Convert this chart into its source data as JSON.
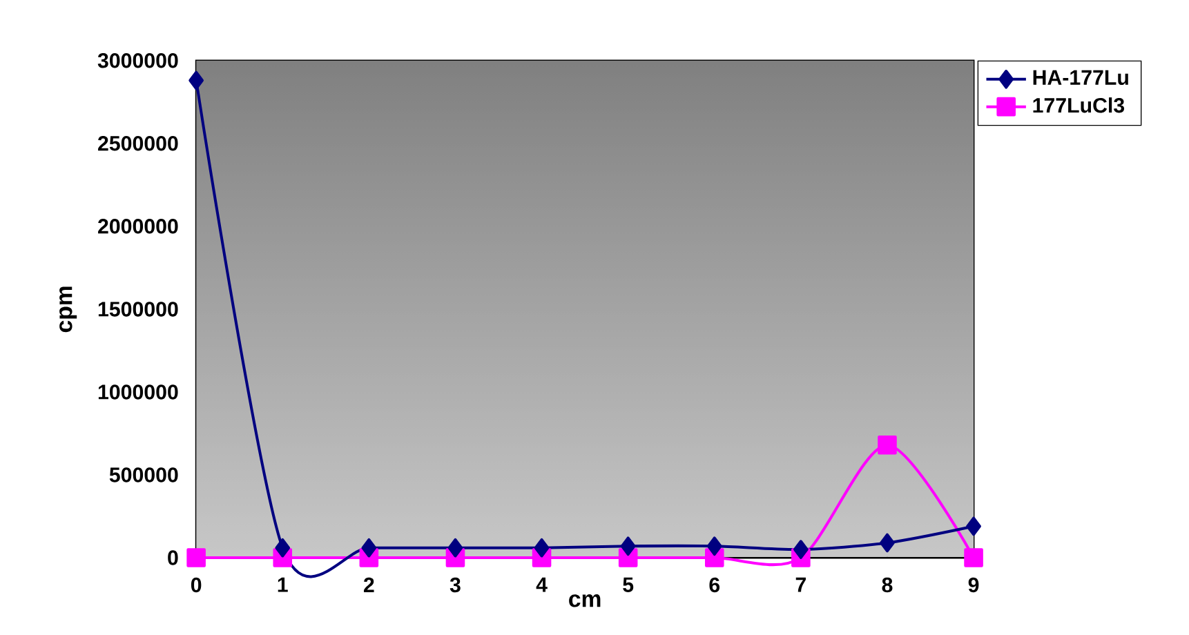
{
  "chart_data": {
    "type": "line",
    "xlabel": "cm",
    "ylabel": "cpm",
    "x": [
      0,
      1,
      2,
      3,
      4,
      5,
      6,
      7,
      8,
      9
    ],
    "series": [
      {
        "name": "HA-177Lu",
        "color": "#000080",
        "marker": "diamond",
        "values": [
          2880000,
          60000,
          60000,
          60000,
          60000,
          70000,
          70000,
          50000,
          90000,
          190000
        ]
      },
      {
        "name": "177LuCl3",
        "color": "#ff00ff",
        "marker": "square",
        "values": [
          0,
          0,
          0,
          0,
          0,
          0,
          0,
          0,
          680000,
          0
        ]
      }
    ],
    "xlim": [
      0,
      9
    ],
    "xticks": [
      0,
      1,
      2,
      3,
      4,
      5,
      6,
      7,
      8,
      9
    ],
    "ylim": [
      0,
      3000000
    ],
    "yticks": [
      0,
      500000,
      1000000,
      1500000,
      2000000,
      2500000,
      3000000
    ],
    "grid": false,
    "legend": "top right",
    "line_style": "solid"
  }
}
